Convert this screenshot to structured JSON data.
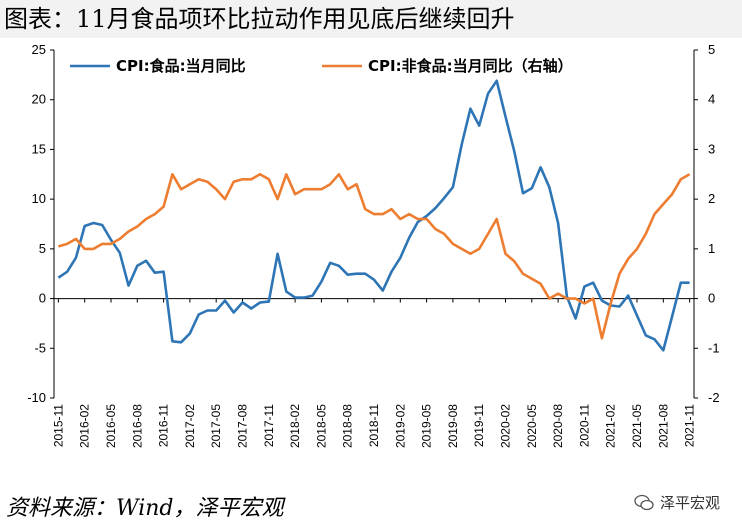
{
  "title": "图表：11月食品项环比拉动作用见底后继续回升",
  "source": "资料来源：Wind，泽平宏观",
  "watermark": "泽平宏观",
  "chart_data": {
    "type": "line",
    "title": "图表：11月食品项环比拉动作用见底后继续回升",
    "x": [
      "2015-11",
      "2015-12",
      "2016-01",
      "2016-02",
      "2016-03",
      "2016-04",
      "2016-05",
      "2016-06",
      "2016-07",
      "2016-08",
      "2016-09",
      "2016-10",
      "2016-11",
      "2016-12",
      "2017-01",
      "2017-02",
      "2017-03",
      "2017-04",
      "2017-05",
      "2017-06",
      "2017-07",
      "2017-08",
      "2017-09",
      "2017-10",
      "2017-11",
      "2017-12",
      "2018-01",
      "2018-02",
      "2018-03",
      "2018-04",
      "2018-05",
      "2018-06",
      "2018-07",
      "2018-08",
      "2018-09",
      "2018-10",
      "2018-11",
      "2018-12",
      "2019-01",
      "2019-02",
      "2019-03",
      "2019-04",
      "2019-05",
      "2019-06",
      "2019-07",
      "2019-08",
      "2019-09",
      "2019-10",
      "2019-11",
      "2019-12",
      "2020-01",
      "2020-02",
      "2020-03",
      "2020-04",
      "2020-05",
      "2020-06",
      "2020-07",
      "2020-08",
      "2020-09",
      "2020-10",
      "2020-11",
      "2020-12",
      "2021-01",
      "2021-02",
      "2021-03",
      "2021-04",
      "2021-05",
      "2021-06",
      "2021-07",
      "2021-08",
      "2021-09",
      "2021-10",
      "2021-11"
    ],
    "xticks": [
      "2015-11",
      "2016-02",
      "2016-05",
      "2016-08",
      "2016-11",
      "2017-02",
      "2017-05",
      "2017-08",
      "2017-11",
      "2018-02",
      "2018-05",
      "2018-08",
      "2018-11",
      "2019-02",
      "2019-05",
      "2019-08",
      "2019-11",
      "2020-02",
      "2020-05",
      "2020-08",
      "2020-11",
      "2021-02",
      "2021-05",
      "2021-08",
      "2021-11"
    ],
    "series": [
      {
        "name": "CPI:食品:当月同比",
        "axis": "left",
        "color": "#2e75b6",
        "values": [
          2.1,
          2.7,
          4.1,
          7.3,
          7.6,
          7.4,
          5.9,
          4.6,
          1.3,
          3.3,
          3.8,
          2.6,
          2.7,
          -4.3,
          -4.4,
          -3.5,
          -1.6,
          -1.2,
          -1.2,
          -0.2,
          -1.4,
          -0.4,
          -1.0,
          -0.4,
          -0.3,
          4.5,
          0.7,
          0.1,
          0.1,
          0.3,
          1.7,
          3.6,
          3.3,
          2.4,
          2.5,
          2.5,
          1.9,
          0.8,
          2.7,
          4.1,
          6.1,
          7.7,
          8.3,
          9.1,
          10.1,
          11.2,
          15.5,
          19.1,
          17.4,
          20.6,
          21.9,
          18.3,
          14.8,
          10.6,
          11.1,
          13.2,
          11.2,
          7.6,
          0.2,
          -2.0,
          1.2,
          1.6,
          -0.2,
          -0.7,
          -0.8,
          0.3,
          -1.7,
          -3.7,
          -4.1,
          -5.2,
          -1.8,
          1.6,
          1.6
        ]
      },
      {
        "name": "CPI:非食品:当月同比（右轴）",
        "axis": "right",
        "color": "#ed7d31",
        "values": [
          1.05,
          1.1,
          1.2,
          1.0,
          1.0,
          1.1,
          1.1,
          1.2,
          1.35,
          1.45,
          1.6,
          1.7,
          1.85,
          2.5,
          2.2,
          2.3,
          2.4,
          2.35,
          2.2,
          2.0,
          2.35,
          2.4,
          2.4,
          2.5,
          2.4,
          2.0,
          2.5,
          2.1,
          2.2,
          2.2,
          2.2,
          2.3,
          2.5,
          2.2,
          2.3,
          1.8,
          1.7,
          1.7,
          1.8,
          1.6,
          1.7,
          1.6,
          1.6,
          1.4,
          1.3,
          1.1,
          1.0,
          0.9,
          1.0,
          1.3,
          1.6,
          0.9,
          0.75,
          0.5,
          0.4,
          0.3,
          0.0,
          0.1,
          0.0,
          0.0,
          -0.1,
          0.0,
          -0.8,
          -0.1,
          0.5,
          0.8,
          1.0,
          1.3,
          1.7,
          1.9,
          2.1,
          2.4,
          2.5
        ]
      }
    ],
    "yleft": {
      "lim": [
        -10,
        25
      ],
      "ticks": [
        -10,
        -5,
        0,
        5,
        10,
        15,
        20,
        25
      ]
    },
    "yright": {
      "lim": [
        -2,
        5
      ],
      "ticks": [
        -2,
        -1,
        0,
        1,
        2,
        3,
        4,
        5
      ]
    },
    "legend": {
      "placement": "top",
      "entries": [
        "CPI:食品:当月同比",
        "CPI:非食品:当月同比（右轴）"
      ]
    },
    "grid": false
  }
}
